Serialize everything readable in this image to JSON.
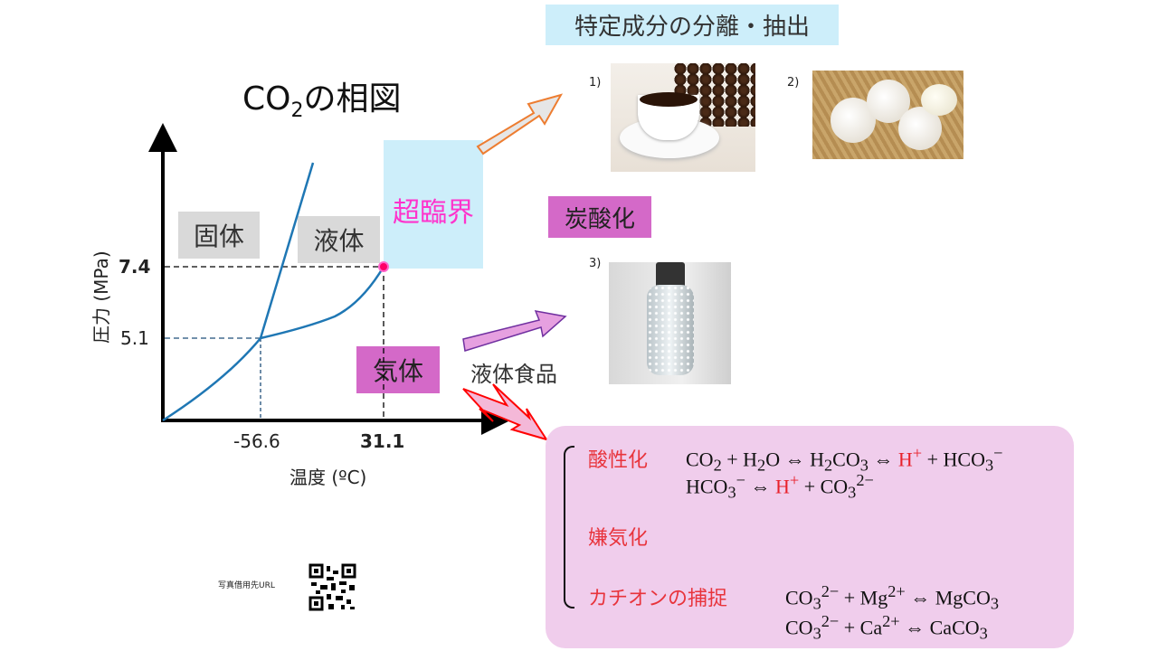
{
  "title_box": "特定成分の分離・抽出",
  "diagram": {
    "title_main": "CO",
    "title_sub": "2",
    "title_rest": "の相図",
    "y_label": "圧力 (MPa)",
    "x_label": "温度 (ºC)",
    "y_ticks": [
      "7.4",
      "5.1"
    ],
    "x_ticks": [
      "-56.6",
      "31.1"
    ],
    "regions": {
      "solid": "固体",
      "liquid": "液体",
      "gas": "気体",
      "supercritical": "超臨界"
    },
    "colors": {
      "curve": "#1f77b4",
      "supercritical_bg": "#cdeefa",
      "supercritical_text": "#ff33cc",
      "gas_bg": "#d469c8",
      "critical_point": "#ff0066"
    }
  },
  "carbonation_box": "炭酸化",
  "liquid_food": "液体食品",
  "photos": [
    {
      "num": "1)",
      "subject": "coffee"
    },
    {
      "num": "2)",
      "subject": "garlic"
    },
    {
      "num": "3)",
      "subject": "sparkling-water-bottle"
    }
  ],
  "effects": {
    "acidify": "酸性化",
    "anaerobic": "嫌気化",
    "cation": "カチオンの捕捉",
    "eq1": [
      "CO",
      "2",
      " + H",
      "2",
      "O ⇔ H",
      "2",
      "CO",
      "3",
      " ⇔ ",
      "H",
      "+",
      " + HCO",
      "3",
      "−"
    ],
    "eq2": [
      "HCO",
      "3",
      "−",
      " ⇔ ",
      "H",
      "+",
      " + CO",
      "3",
      "2−"
    ],
    "eq3": [
      "CO",
      "3",
      "2−",
      " + Mg",
      "2+",
      " ⇔ MgCO",
      "3"
    ],
    "eq4": [
      "CO",
      "3",
      "2−",
      " + Ca",
      "2+",
      " ⇔ CaCO",
      "3"
    ]
  },
  "credit": "写真借用先URL"
}
